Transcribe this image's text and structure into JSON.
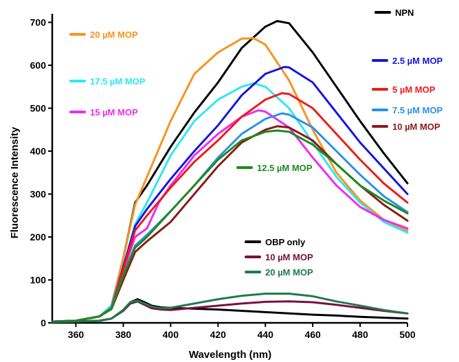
{
  "chart_data": {
    "type": "line",
    "title": "",
    "xlabel": "Wavelength (nm)",
    "ylabel": "Fluorescence Intensity",
    "xlim": [
      350,
      500
    ],
    "ylim": [
      0,
      720
    ],
    "xticks": [
      360,
      380,
      400,
      420,
      440,
      460,
      480,
      500
    ],
    "yticks": [
      0,
      100,
      200,
      300,
      400,
      500,
      600,
      700
    ],
    "grid": false,
    "series": [
      {
        "name": "NPN",
        "color": "#000000",
        "x": [
          350,
          360,
          370,
          375,
          380,
          385,
          390,
          400,
          410,
          420,
          430,
          440,
          445,
          450,
          460,
          470,
          480,
          490,
          500
        ],
        "y": [
          3,
          5,
          15,
          40,
          150,
          280,
          320,
          410,
          490,
          560,
          640,
          690,
          703,
          698,
          630,
          550,
          470,
          395,
          325
        ]
      },
      {
        "name": "20 µM MOP",
        "color": "#f7941d",
        "x": [
          350,
          360,
          370,
          375,
          380,
          385,
          390,
          400,
          410,
          420,
          430,
          435,
          440,
          450,
          460,
          470,
          480,
          490,
          500
        ],
        "y": [
          3,
          5,
          15,
          40,
          150,
          275,
          340,
          470,
          580,
          630,
          662,
          663,
          648,
          565,
          450,
          350,
          285,
          240,
          215
        ]
      },
      {
        "name": "17.5 µM MOP",
        "color": "#2ee8f0",
        "x": [
          350,
          360,
          370,
          375,
          380,
          385,
          390,
          400,
          410,
          420,
          430,
          435,
          440,
          450,
          460,
          470,
          480,
          490,
          500
        ],
        "y": [
          3,
          5,
          15,
          40,
          130,
          230,
          280,
          390,
          470,
          520,
          550,
          558,
          550,
          500,
          420,
          340,
          280,
          235,
          210
        ]
      },
      {
        "name": "15 µM MOP",
        "color": "#ee2cf0",
        "x": [
          350,
          360,
          370,
          375,
          380,
          385,
          390,
          395,
          400,
          410,
          420,
          430,
          437,
          440,
          450,
          460,
          470,
          480,
          490,
          500
        ],
        "y": [
          3,
          5,
          15,
          35,
          120,
          200,
          220,
          280,
          320,
          390,
          440,
          480,
          495,
          492,
          455,
          385,
          320,
          270,
          240,
          220
        ]
      },
      {
        "name": "2.5 µM MOP",
        "color": "#1515e0",
        "x": [
          350,
          360,
          370,
          375,
          380,
          385,
          390,
          400,
          410,
          420,
          430,
          440,
          448,
          450,
          460,
          470,
          480,
          490,
          500
        ],
        "y": [
          3,
          5,
          15,
          35,
          130,
          225,
          265,
          335,
          400,
          460,
          530,
          580,
          596,
          595,
          560,
          490,
          420,
          360,
          300
        ]
      },
      {
        "name": "5 µM MOP",
        "color": "#ef1a1a",
        "x": [
          350,
          360,
          370,
          375,
          380,
          385,
          390,
          400,
          410,
          420,
          430,
          440,
          447,
          450,
          460,
          470,
          480,
          490,
          500
        ],
        "y": [
          3,
          5,
          15,
          35,
          125,
          215,
          250,
          315,
          375,
          425,
          480,
          520,
          535,
          533,
          500,
          440,
          380,
          325,
          280
        ]
      },
      {
        "name": "7.5 µM MOP",
        "color": "#2b8fe8",
        "x": [
          350,
          360,
          370,
          375,
          380,
          385,
          390,
          400,
          410,
          420,
          430,
          440,
          447,
          450,
          460,
          470,
          480,
          490,
          500
        ],
        "y": [
          3,
          5,
          15,
          35,
          110,
          180,
          205,
          260,
          320,
          385,
          440,
          475,
          488,
          485,
          455,
          400,
          345,
          295,
          258
        ]
      },
      {
        "name": "10 µM MOP",
        "color": "#8b1a1a",
        "x": [
          350,
          360,
          370,
          375,
          380,
          385,
          390,
          400,
          410,
          420,
          430,
          440,
          445,
          450,
          460,
          470,
          480,
          490,
          500
        ],
        "y": [
          3,
          5,
          15,
          32,
          100,
          165,
          190,
          235,
          300,
          365,
          420,
          450,
          458,
          455,
          425,
          370,
          320,
          275,
          238
        ]
      },
      {
        "name": "12.5 µM MOP",
        "color": "#1e8a1e",
        "x": [
          350,
          360,
          370,
          375,
          380,
          385,
          390,
          400,
          410,
          420,
          430,
          440,
          445,
          450,
          460,
          470,
          480,
          490,
          500
        ],
        "y": [
          3,
          5,
          15,
          33,
          110,
          175,
          200,
          260,
          320,
          380,
          425,
          445,
          448,
          445,
          415,
          370,
          320,
          285,
          255
        ]
      },
      {
        "name": "OBP only",
        "color": "#000000",
        "x": [
          350,
          360,
          370,
          375,
          380,
          383,
          386,
          389,
          392,
          396,
          400,
          410,
          420,
          430,
          440,
          450,
          460,
          470,
          480,
          490,
          500
        ],
        "y": [
          2,
          3,
          5,
          10,
          30,
          48,
          55,
          48,
          40,
          36,
          35,
          33,
          31,
          28,
          25,
          22,
          19,
          17,
          14,
          12,
          10
        ]
      },
      {
        "name": "10 µM MOP",
        "color": "#7a0f3d",
        "x": [
          350,
          360,
          370,
          375,
          380,
          383,
          386,
          389,
          392,
          396,
          400,
          410,
          420,
          430,
          440,
          450,
          460,
          470,
          480,
          490,
          500
        ],
        "y": [
          2,
          3,
          5,
          10,
          28,
          45,
          50,
          42,
          34,
          31,
          30,
          35,
          40,
          45,
          49,
          50,
          48,
          42,
          35,
          28,
          22
        ]
      },
      {
        "name": "20 µM MOP",
        "color": "#1f7a4c",
        "x": [
          350,
          360,
          370,
          375,
          380,
          383,
          386,
          389,
          392,
          396,
          400,
          410,
          420,
          430,
          440,
          450,
          460,
          470,
          480,
          490,
          500
        ],
        "y": [
          2,
          3,
          5,
          10,
          30,
          48,
          52,
          45,
          38,
          34,
          35,
          45,
          55,
          63,
          68,
          68,
          62,
          50,
          40,
          30,
          22
        ]
      }
    ],
    "legend": [
      {
        "label": "NPN",
        "series": 0
      },
      {
        "label": "20 µM MOP",
        "series": 1
      },
      {
        "label": "17.5 µM MOP",
        "series": 2
      },
      {
        "label": "15 µM MOP",
        "series": 3
      },
      {
        "label": "2.5 µM MOP",
        "series": 4
      },
      {
        "label": "5 µM MOP",
        "series": 5
      },
      {
        "label": "7.5 µM MOP",
        "series": 6
      },
      {
        "label": "10 µM MOP",
        "series": 7
      },
      {
        "label": "12.5 µM MOP",
        "series": 8
      },
      {
        "label": "OBP only",
        "series": 9
      },
      {
        "label": "10 µM MOP",
        "series": 10
      },
      {
        "label": "20 µM MOP",
        "series": 11
      }
    ]
  }
}
